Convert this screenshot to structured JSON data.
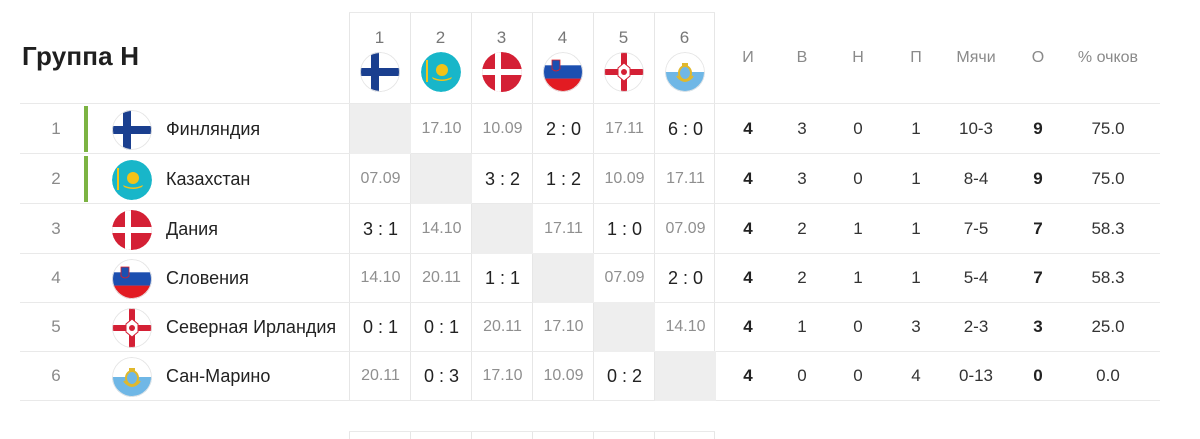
{
  "group": {
    "title": "Группа H"
  },
  "columns": {
    "numbers": [
      "1",
      "2",
      "3",
      "4",
      "5",
      "6"
    ],
    "flags": [
      "finland-flag-icon",
      "kazakhstan-flag-icon",
      "denmark-flag-icon",
      "slovenia-flag-icon",
      "northern-ireland-flag-icon",
      "san-marino-flag-icon"
    ],
    "stats": [
      "И",
      "В",
      "Н",
      "П",
      "Мячи",
      "О",
      "% очков"
    ]
  },
  "teams": [
    {
      "rank": "1",
      "name": "Финляндия",
      "flag": "finland-flag-icon",
      "qualified": true,
      "results": [
        "",
        "17.10",
        "10.09",
        "2 : 0",
        "17.11",
        "6 : 0"
      ],
      "games": "4",
      "wins": "3",
      "draws": "0",
      "losses": "1",
      "goals": "10-3",
      "points": "9",
      "percent": "75.0"
    },
    {
      "rank": "2",
      "name": "Казахстан",
      "flag": "kazakhstan-flag-icon",
      "qualified": true,
      "results": [
        "07.09",
        "",
        "3 : 2",
        "1 : 2",
        "10.09",
        "17.11"
      ],
      "games": "4",
      "wins": "3",
      "draws": "0",
      "losses": "1",
      "goals": "8-4",
      "points": "9",
      "percent": "75.0"
    },
    {
      "rank": "3",
      "name": "Дания",
      "flag": "denmark-flag-icon",
      "qualified": false,
      "results": [
        "3 : 1",
        "14.10",
        "",
        "17.11",
        "1 : 0",
        "07.09"
      ],
      "games": "4",
      "wins": "2",
      "draws": "1",
      "losses": "1",
      "goals": "7-5",
      "points": "7",
      "percent": "58.3"
    },
    {
      "rank": "4",
      "name": "Словения",
      "flag": "slovenia-flag-icon",
      "qualified": false,
      "results": [
        "14.10",
        "20.11",
        "1 : 1",
        "",
        "07.09",
        "2 : 0"
      ],
      "games": "4",
      "wins": "2",
      "draws": "1",
      "losses": "1",
      "goals": "5-4",
      "points": "7",
      "percent": "58.3"
    },
    {
      "rank": "5",
      "name": "Северная Ирландия",
      "flag": "northern-ireland-flag-icon",
      "qualified": false,
      "results": [
        "0 : 1",
        "0 : 1",
        "20.11",
        "17.10",
        "",
        "14.10"
      ],
      "games": "4",
      "wins": "1",
      "draws": "0",
      "losses": "3",
      "goals": "2-3",
      "points": "3",
      "percent": "25.0"
    },
    {
      "rank": "6",
      "name": "Сан-Марино",
      "flag": "san-marino-flag-icon",
      "qualified": false,
      "results": [
        "20.11",
        "0 : 3",
        "17.10",
        "10.09",
        "0 : 2",
        ""
      ],
      "games": "4",
      "wins": "0",
      "draws": "0",
      "losses": "4",
      "goals": "0-13",
      "points": "0",
      "percent": "0.0"
    }
  ],
  "colors": {
    "qualified_accent": "#7cb342",
    "self_cell": "#eeeeee",
    "date_text": "#8f8f8f"
  }
}
